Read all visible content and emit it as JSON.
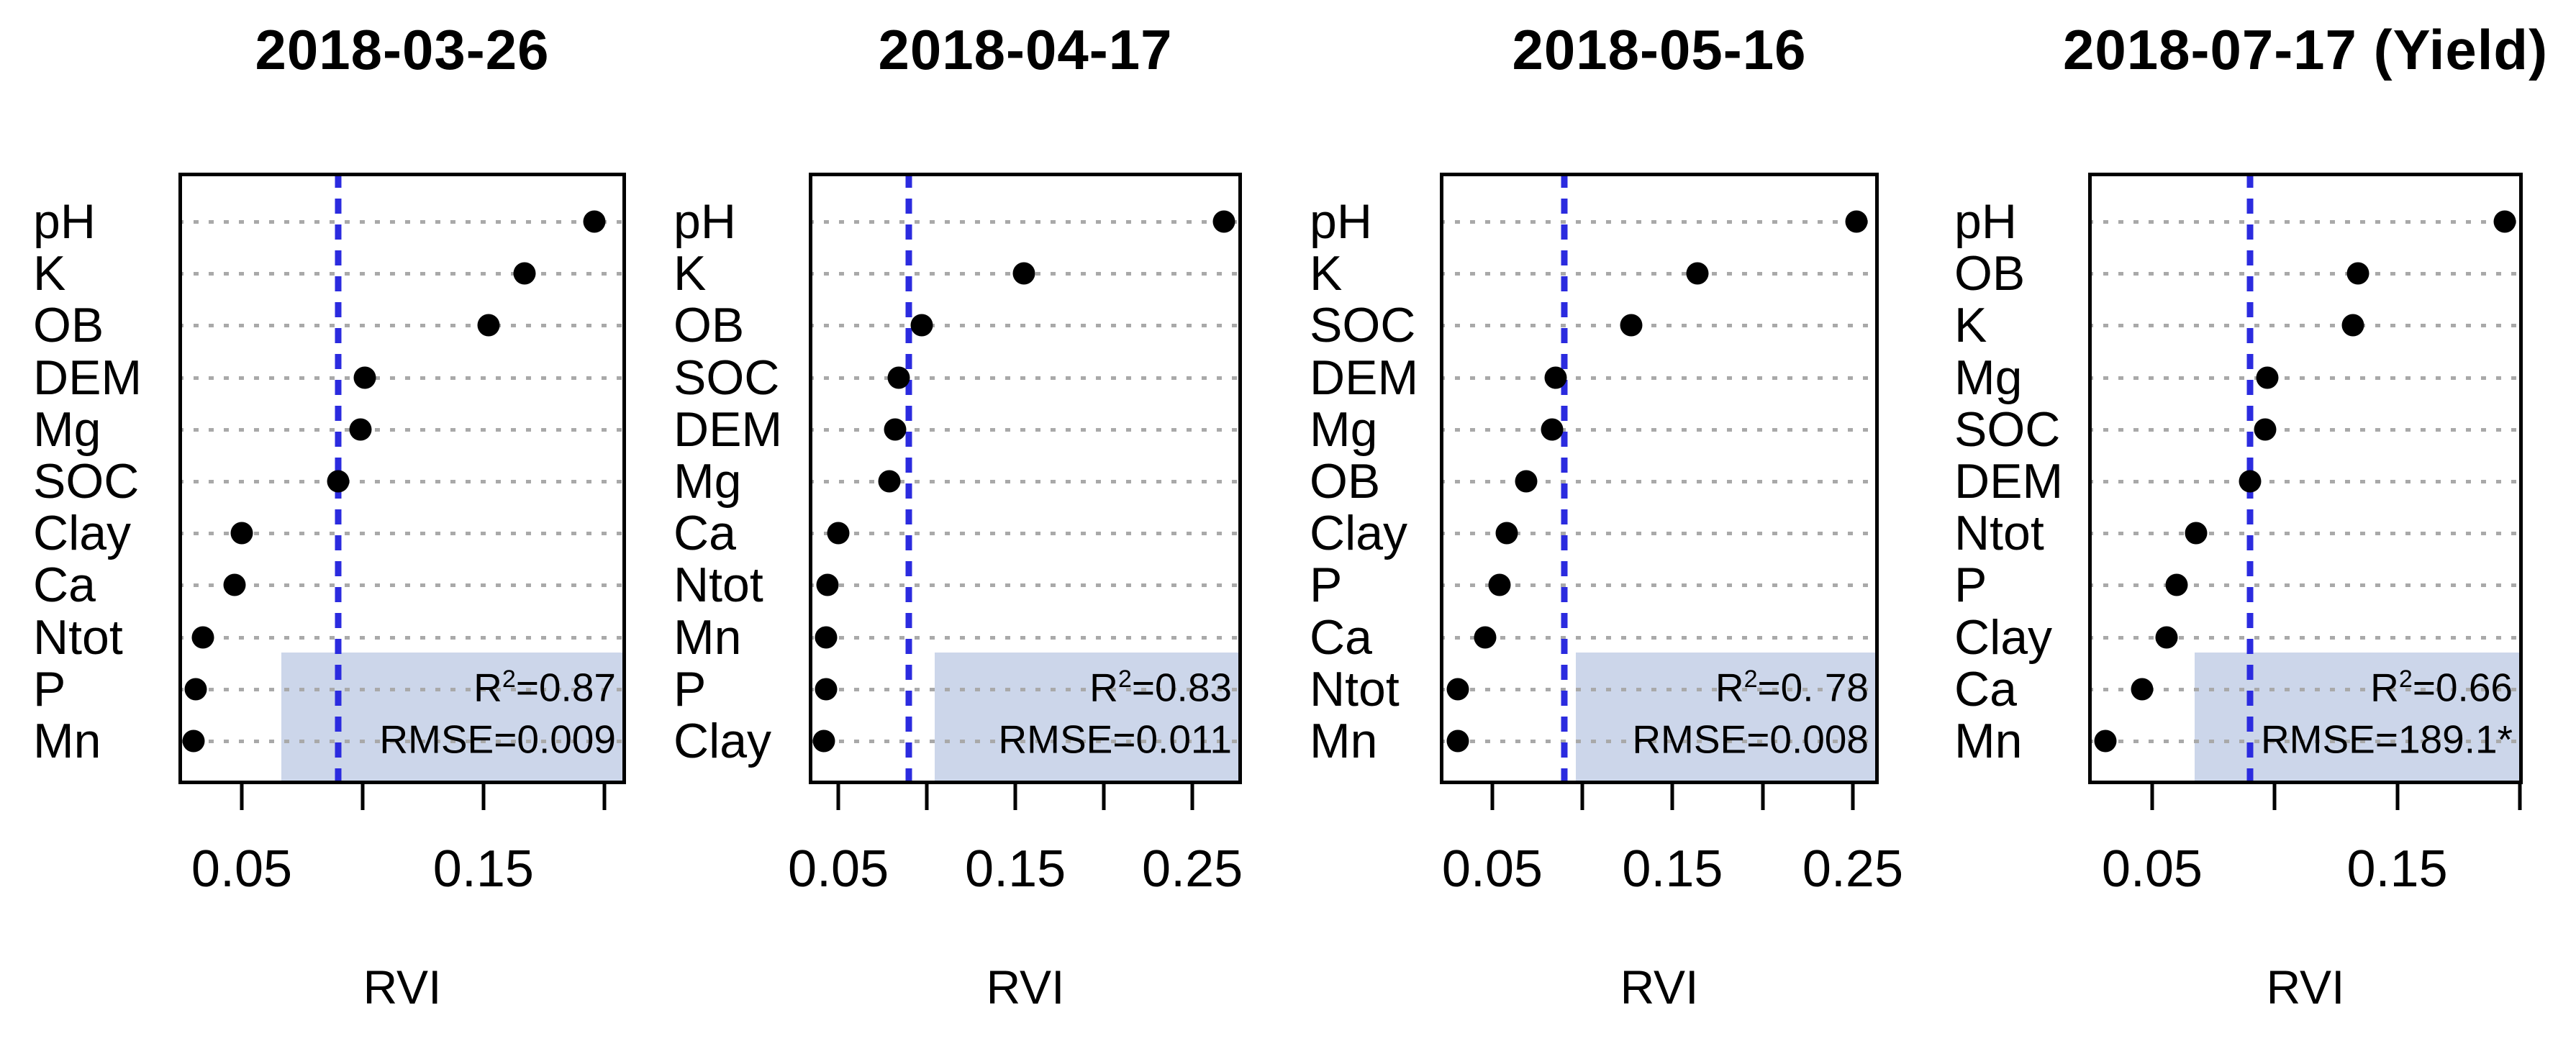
{
  "figure": {
    "background": "#ffffff",
    "x_axis_title_repeated": "RVI"
  },
  "colors": {
    "point": "#000000",
    "grid_dotted": "#a9a9a9",
    "plot_border": "#000000",
    "threshold_dashed": "#2b2bdf",
    "annotation_fill": "#ccd6ea",
    "text": "#000000"
  },
  "chart_data": [
    {
      "type": "scatter",
      "title": "2018-03-26",
      "xlabel": "RVI",
      "xlim": [
        0.0238,
        0.209
      ],
      "threshold_line": 0.09,
      "grid": "dotted-horizontal",
      "categories": [
        "pH",
        "K",
        "OB",
        "DEM",
        "Mg",
        "SOC",
        "Clay",
        "Ca",
        "Ntot",
        "P",
        "Mn"
      ],
      "values": [
        0.196,
        0.167,
        0.152,
        0.101,
        0.099,
        0.09,
        0.05,
        0.047,
        0.034,
        0.031,
        0.03
      ],
      "ticks": [
        {
          "value": 0.05,
          "label": "0.05"
        },
        {
          "value": 0.1,
          "label": ""
        },
        {
          "value": 0.15,
          "label": "0.15"
        },
        {
          "value": 0.2,
          "label": ""
        }
      ],
      "annotations": {
        "r2_base": "R",
        "r2_exp": "2",
        "r2_rest": "=0.87",
        "rmse": "RMSE=0.009"
      }
    },
    {
      "type": "scatter",
      "title": "2018-04-17",
      "xlabel": "RVI",
      "xlim": [
        0.0333,
        0.278
      ],
      "threshold_line": 0.09,
      "grid": "dotted-horizontal",
      "categories": [
        "pH",
        "K",
        "OB",
        "SOC",
        "DEM",
        "Mg",
        "Ca",
        "Ntot",
        "Mn",
        "P",
        "Clay"
      ],
      "values": [
        0.268,
        0.155,
        0.097,
        0.084,
        0.082,
        0.079,
        0.05,
        0.044,
        0.043,
        0.043,
        0.042
      ],
      "ticks": [
        {
          "value": 0.05,
          "label": "0.05"
        },
        {
          "value": 0.1,
          "label": ""
        },
        {
          "value": 0.15,
          "label": "0.15"
        },
        {
          "value": 0.2,
          "label": ""
        },
        {
          "value": 0.25,
          "label": "0.25"
        }
      ],
      "annotations": {
        "r2_base": "R",
        "r2_exp": "2",
        "r2_rest": "=0.83",
        "rmse": "RMSE=0.011"
      }
    },
    {
      "type": "scatter",
      "title": "2018-05-16",
      "xlabel": "RVI",
      "xlim": [
        0.0209,
        0.2644
      ],
      "threshold_line": 0.09,
      "grid": "dotted-horizontal",
      "categories": [
        "pH",
        "K",
        "SOC",
        "DEM",
        "Mg",
        "OB",
        "Clay",
        "P",
        "Ca",
        "Ntot",
        "Mn"
      ],
      "values": [
        0.252,
        0.164,
        0.127,
        0.085,
        0.083,
        0.069,
        0.058,
        0.054,
        0.046,
        0.031,
        0.031
      ],
      "ticks": [
        {
          "value": 0.05,
          "label": "0.05"
        },
        {
          "value": 0.1,
          "label": ""
        },
        {
          "value": 0.15,
          "label": "0.15"
        },
        {
          "value": 0.2,
          "label": ""
        },
        {
          "value": 0.25,
          "label": "0.25"
        }
      ],
      "annotations": {
        "r2_base": "R",
        "r2_exp": "2",
        "r2_rest": "=0. 78",
        "rmse": "RMSE=0.008"
      }
    },
    {
      "type": "scatter",
      "title": "2018-07-17 (Yield)",
      "xlabel": "RVI",
      "xlim": [
        0.0239,
        0.2012
      ],
      "threshold_line": 0.09,
      "grid": "dotted-horizontal",
      "categories": [
        "pH",
        "OB",
        "K",
        "Mg",
        "SOC",
        "DEM",
        "Ntot",
        "P",
        "Clay",
        "Ca",
        "Mn"
      ],
      "values": [
        0.194,
        0.134,
        0.132,
        0.097,
        0.096,
        0.09,
        0.068,
        0.06,
        0.056,
        0.046,
        0.031
      ],
      "ticks": [
        {
          "value": 0.05,
          "label": "0.05"
        },
        {
          "value": 0.1,
          "label": ""
        },
        {
          "value": 0.15,
          "label": "0.15"
        },
        {
          "value": 0.2,
          "label": ""
        }
      ],
      "annotations": {
        "r2_base": "R",
        "r2_exp": "2",
        "r2_rest": "=0.66",
        "rmse": "RMSE=189.1*"
      }
    }
  ]
}
